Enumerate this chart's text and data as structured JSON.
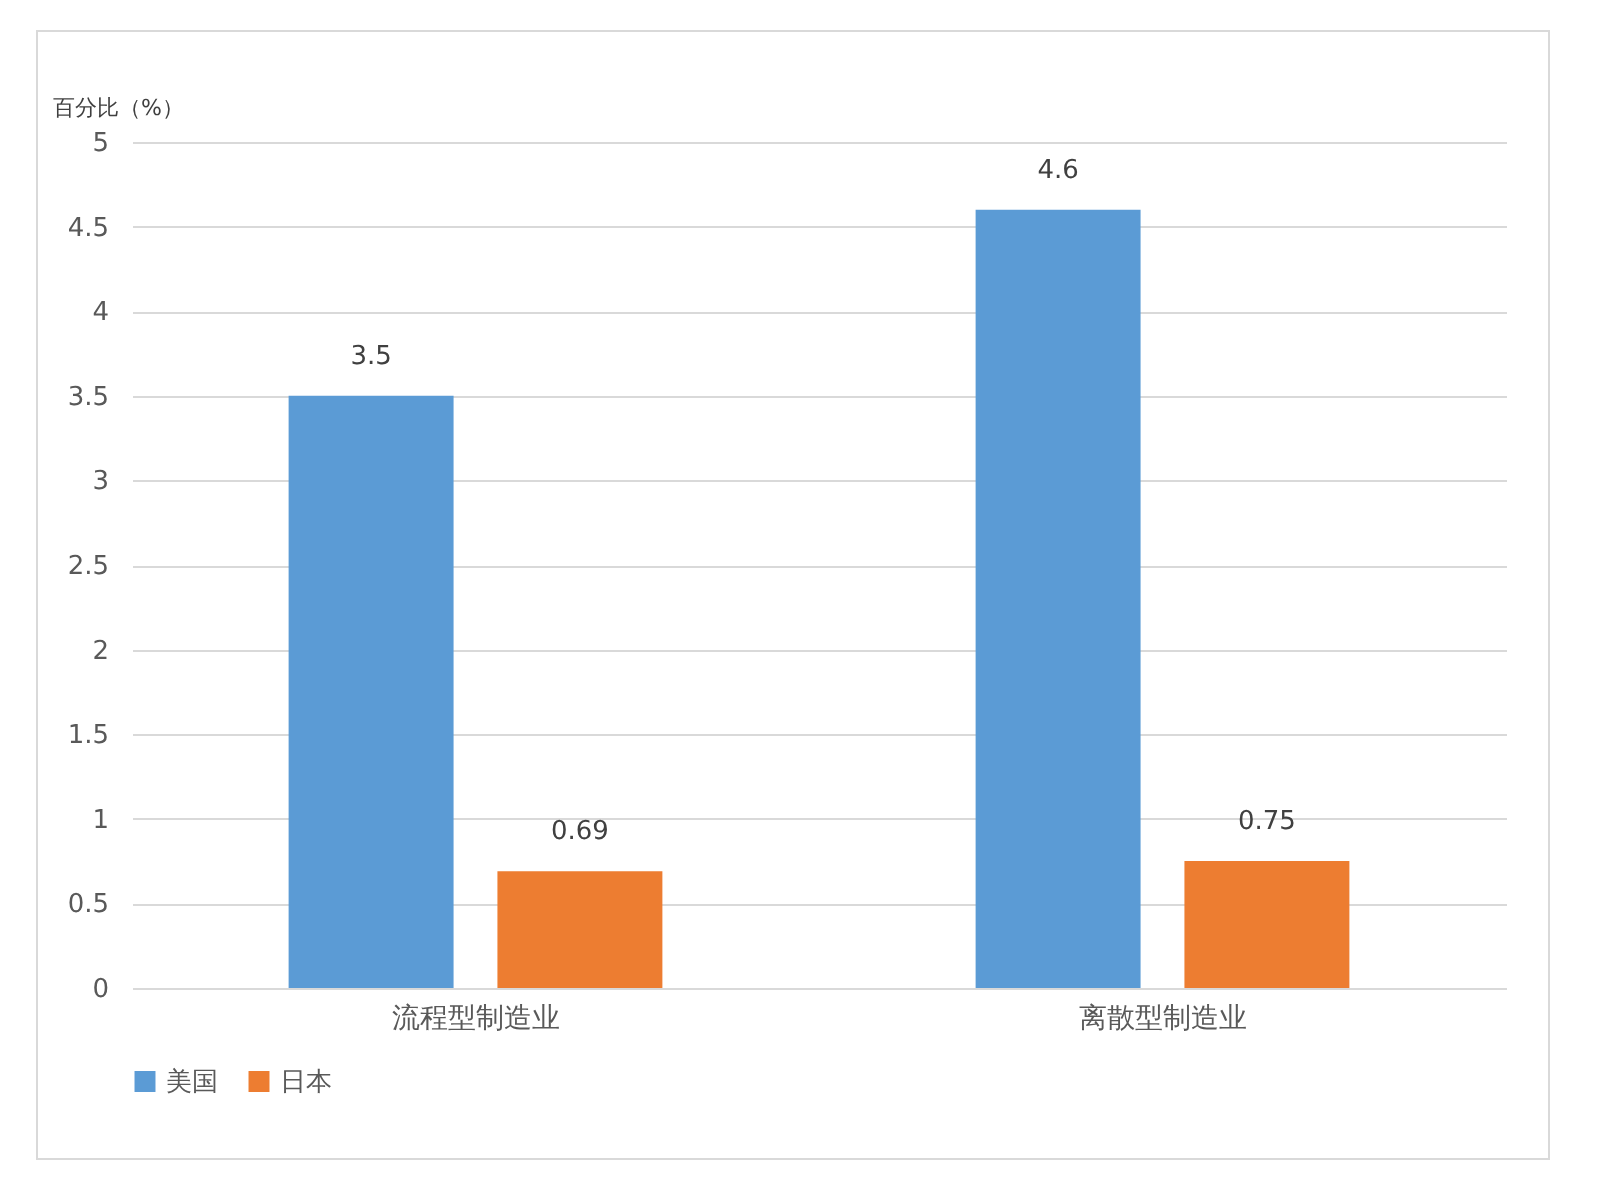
{
  "chart_data": {
    "type": "bar",
    "ylabel": "百分比（%）",
    "categories": [
      "流程型制造业",
      "离散型制造业"
    ],
    "series": [
      {
        "name": "美国",
        "color": "#5b9bd5",
        "values": [
          3.5,
          4.6
        ]
      },
      {
        "name": "日本",
        "color": "#ed7d31",
        "values": [
          0.69,
          0.75
        ]
      }
    ],
    "ylim": [
      0,
      5
    ],
    "yticks": [
      0,
      0.5,
      1,
      1.5,
      2,
      2.5,
      3,
      3.5,
      4,
      4.5,
      5
    ],
    "grid": "y",
    "legend": "bottom",
    "data_labels": true
  }
}
